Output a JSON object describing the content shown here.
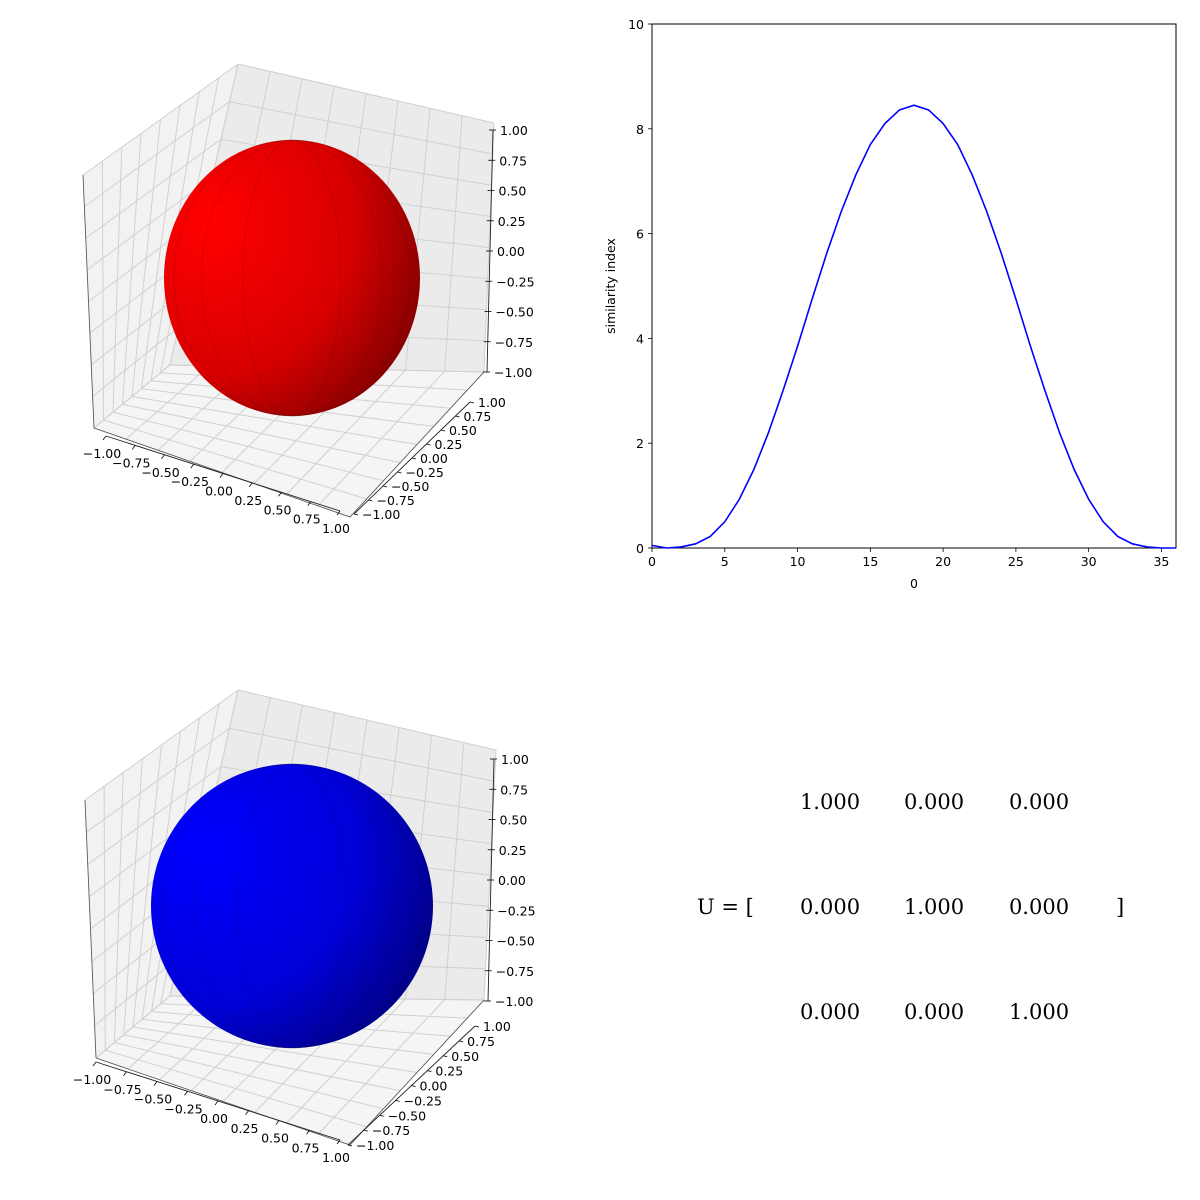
{
  "chart_data": [
    {
      "type": "surface3d",
      "panel": "top-left",
      "shape": "sphere",
      "color": "#ff0000",
      "axes": {
        "x": {
          "range": [
            -1,
            1
          ],
          "ticks": [
            "−1.00",
            "−0.75",
            "−0.50",
            "−0.25",
            "0.00",
            "0.25",
            "0.50",
            "0.75",
            "1.00"
          ]
        },
        "y": {
          "range": [
            -1,
            1
          ],
          "ticks": [
            "−1.00",
            "−0.75",
            "−0.50",
            "−0.25",
            "0.00",
            "0.25",
            "0.50",
            "0.75",
            "1.00"
          ]
        },
        "z": {
          "range": [
            -1,
            1
          ],
          "ticks": [
            "1.00",
            "0.75",
            "0.50",
            "0.25",
            "0.00",
            "−0.25",
            "−0.50",
            "−0.75",
            "−1.00"
          ]
        }
      },
      "grid": true
    },
    {
      "type": "line",
      "panel": "top-right",
      "xlabel": "0",
      "ylabel": "similarity index",
      "xlim": [
        0,
        36
      ],
      "ylim": [
        0,
        10
      ],
      "xticks": [
        "0",
        "5",
        "10",
        "15",
        "20",
        "25",
        "30",
        "35"
      ],
      "yticks": [
        "0",
        "2",
        "4",
        "6",
        "8",
        "10"
      ],
      "color": "#0000ff",
      "grid": false,
      "series": [
        {
          "x": [
            0,
            1,
            2,
            3,
            4,
            5,
            6,
            7,
            8,
            9,
            10,
            11,
            12,
            13,
            14,
            15,
            16,
            17,
            18,
            19,
            20,
            21,
            22,
            23,
            24,
            25,
            26,
            27,
            28,
            29,
            30,
            31,
            32,
            33,
            34,
            35,
            36
          ],
          "y": [
            0.05,
            0.0,
            0.02,
            0.08,
            0.22,
            0.5,
            0.93,
            1.5,
            2.2,
            3.0,
            3.85,
            4.75,
            5.62,
            6.42,
            7.12,
            7.7,
            8.1,
            8.36,
            8.45,
            8.36,
            8.1,
            7.7,
            7.12,
            6.42,
            5.62,
            4.75,
            3.85,
            3.0,
            2.2,
            1.5,
            0.93,
            0.5,
            0.22,
            0.08,
            0.02,
            0.0,
            0.0
          ]
        }
      ]
    },
    {
      "type": "surface3d",
      "panel": "bottom-left",
      "shape": "sphere",
      "color": "#0000ff",
      "axes": {
        "x": {
          "range": [
            -1,
            1
          ],
          "ticks": [
            "−1.00",
            "−0.75",
            "−0.50",
            "−0.25",
            "0.00",
            "0.25",
            "0.50",
            "0.75",
            "1.00"
          ]
        },
        "y": {
          "range": [
            -1,
            1
          ],
          "ticks": [
            "−1.00",
            "−0.75",
            "−0.50",
            "−0.25",
            "0.00",
            "0.25",
            "0.50",
            "0.75",
            "1.00"
          ]
        },
        "z": {
          "range": [
            -1,
            1
          ],
          "ticks": [
            "1.00",
            "0.75",
            "0.50",
            "0.25",
            "0.00",
            "−0.25",
            "−0.50",
            "−0.75",
            "−1.00"
          ]
        }
      },
      "grid": true
    },
    {
      "type": "table",
      "panel": "bottom-right",
      "label": "U = [",
      "close": "]",
      "rows": [
        [
          "1.000",
          "0.000",
          "0.000"
        ],
        [
          "0.000",
          "1.000",
          "0.000"
        ],
        [
          "0.000",
          "0.000",
          "1.000"
        ]
      ]
    }
  ]
}
